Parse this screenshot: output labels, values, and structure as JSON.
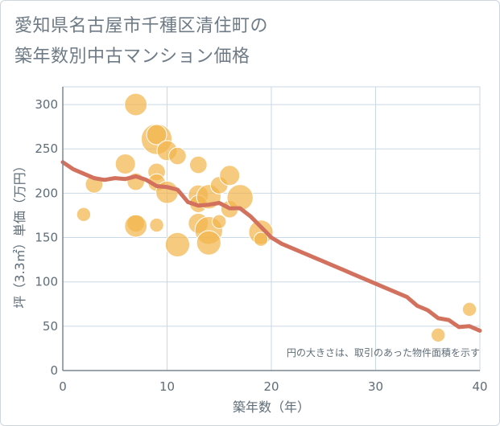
{
  "title": {
    "line1": "愛知県名古屋市千種区清住町の",
    "line2": "築年数別中古マンション価格"
  },
  "chart_data": {
    "type": "scatter",
    "xlabel": "築年数（年）",
    "ylabel": "坪（3.3㎡）単価（万円）",
    "xlim": [
      0,
      40
    ],
    "ylim": [
      0,
      320
    ],
    "xticks": [
      "0",
      "10",
      "20",
      "30",
      "40"
    ],
    "yticks": [
      "0",
      "50",
      "100",
      "150",
      "200",
      "250",
      "300"
    ],
    "note": "円の大きさは、取引のあった物件面積を示す",
    "grid": true,
    "colors": {
      "bubble": "#f3b64e",
      "line": "#d2715d",
      "grid": "#c9d8e6",
      "axis": "#7d8790"
    },
    "bubbles": [
      {
        "x": 2,
        "y": 176,
        "size": 1
      },
      {
        "x": 3,
        "y": 210,
        "size": 2
      },
      {
        "x": 6,
        "y": 233,
        "size": 3
      },
      {
        "x": 7,
        "y": 300,
        "size": 4
      },
      {
        "x": 7,
        "y": 213,
        "size": 2
      },
      {
        "x": 7,
        "y": 166,
        "size": 2
      },
      {
        "x": 7,
        "y": 163,
        "size": 4
      },
      {
        "x": 9,
        "y": 261,
        "size": 9
      },
      {
        "x": 9,
        "y": 266,
        "size": 3
      },
      {
        "x": 9,
        "y": 224,
        "size": 2
      },
      {
        "x": 9,
        "y": 212,
        "size": 2
      },
      {
        "x": 9,
        "y": 164,
        "size": 1
      },
      {
        "x": 10,
        "y": 248,
        "size": 3
      },
      {
        "x": 10,
        "y": 201,
        "size": 4
      },
      {
        "x": 11,
        "y": 242,
        "size": 2
      },
      {
        "x": 11,
        "y": 142,
        "size": 5
      },
      {
        "x": 13,
        "y": 232,
        "size": 2
      },
      {
        "x": 13,
        "y": 198,
        "size": 3
      },
      {
        "x": 13,
        "y": 188,
        "size": 2
      },
      {
        "x": 13,
        "y": 166,
        "size": 3
      },
      {
        "x": 14,
        "y": 196,
        "size": 5
      },
      {
        "x": 14,
        "y": 158,
        "size": 7
      },
      {
        "x": 14,
        "y": 144,
        "size": 5
      },
      {
        "x": 15,
        "y": 209,
        "size": 2
      },
      {
        "x": 15,
        "y": 168,
        "size": 1
      },
      {
        "x": 16,
        "y": 220,
        "size": 3
      },
      {
        "x": 16,
        "y": 182,
        "size": 2
      },
      {
        "x": 17,
        "y": 195,
        "size": 6
      },
      {
        "x": 19,
        "y": 156,
        "size": 5
      },
      {
        "x": 19,
        "y": 148,
        "size": 1
      },
      {
        "x": 36,
        "y": 40,
        "size": 1
      },
      {
        "x": 39,
        "y": 69,
        "size": 1
      }
    ],
    "trend": {
      "x": [
        0,
        1,
        2,
        3,
        4,
        5,
        6,
        7,
        8,
        9,
        10,
        11,
        12,
        13,
        14,
        15,
        16,
        17,
        18,
        19,
        20,
        21,
        22,
        23,
        24,
        25,
        26,
        27,
        28,
        29,
        30,
        31,
        32,
        33,
        34,
        35,
        36,
        37,
        38,
        39,
        40
      ],
      "y": [
        235,
        227,
        222,
        217,
        215,
        217,
        216,
        219,
        215,
        208,
        207,
        204,
        190,
        186,
        187,
        189,
        183,
        183,
        174,
        162,
        150,
        143,
        138,
        133,
        128,
        123,
        118,
        113,
        108,
        103,
        98,
        93,
        88,
        83,
        73,
        68,
        59,
        57,
        49,
        50,
        45
      ]
    }
  }
}
